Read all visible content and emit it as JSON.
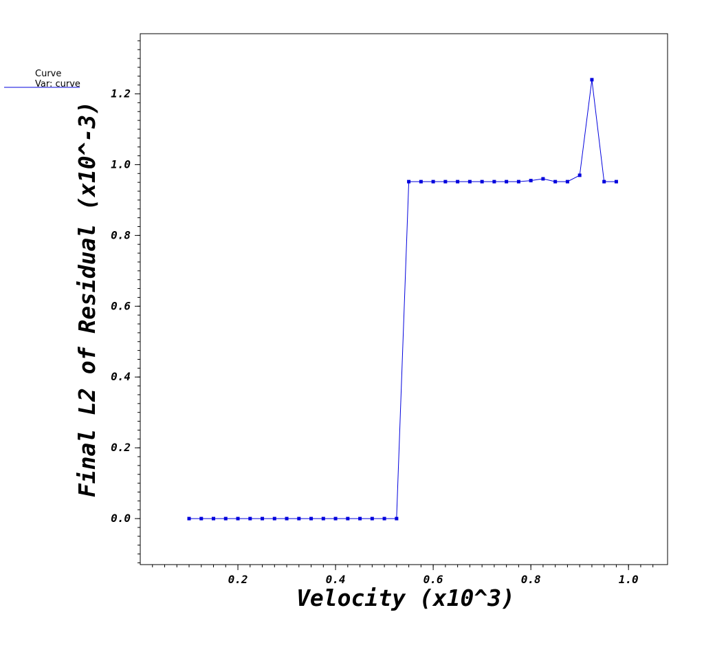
{
  "chart_data": {
    "type": "line",
    "xlabel": "Velocity (x10^3)",
    "ylabel": "Final L2 of Residual (x10^-3)",
    "xlim": [
      0.0,
      1.08
    ],
    "ylim": [
      -0.13,
      1.37
    ],
    "x_ticks": [
      "0.2",
      "0.4",
      "0.6",
      "0.8",
      "1.0"
    ],
    "y_ticks": [
      "0.0",
      "0.2",
      "0.4",
      "0.6",
      "0.8",
      "1.0",
      "1.2"
    ],
    "legend": {
      "title": "Curve",
      "entry": "Var: curve",
      "placement": "top-left"
    },
    "series": [
      {
        "color": "#0000dd",
        "marker": "square",
        "x": [
          0.1,
          0.125,
          0.15,
          0.175,
          0.2,
          0.225,
          0.25,
          0.275,
          0.3,
          0.325,
          0.35,
          0.375,
          0.4,
          0.425,
          0.45,
          0.475,
          0.5,
          0.525,
          0.55,
          0.575,
          0.6,
          0.625,
          0.65,
          0.675,
          0.7,
          0.725,
          0.75,
          0.775,
          0.8,
          0.825,
          0.85,
          0.875,
          0.9,
          0.925,
          0.95,
          0.975
        ],
        "y": [
          0,
          0,
          0,
          0,
          0,
          0,
          0,
          0,
          0,
          0,
          0,
          0,
          0,
          0,
          0,
          0,
          0,
          0,
          0.952,
          0.952,
          0.952,
          0.952,
          0.952,
          0.952,
          0.952,
          0.952,
          0.952,
          0.952,
          0.955,
          0.96,
          0.952,
          0.952,
          0.97,
          1.24,
          0.952,
          0.952
        ]
      }
    ]
  }
}
